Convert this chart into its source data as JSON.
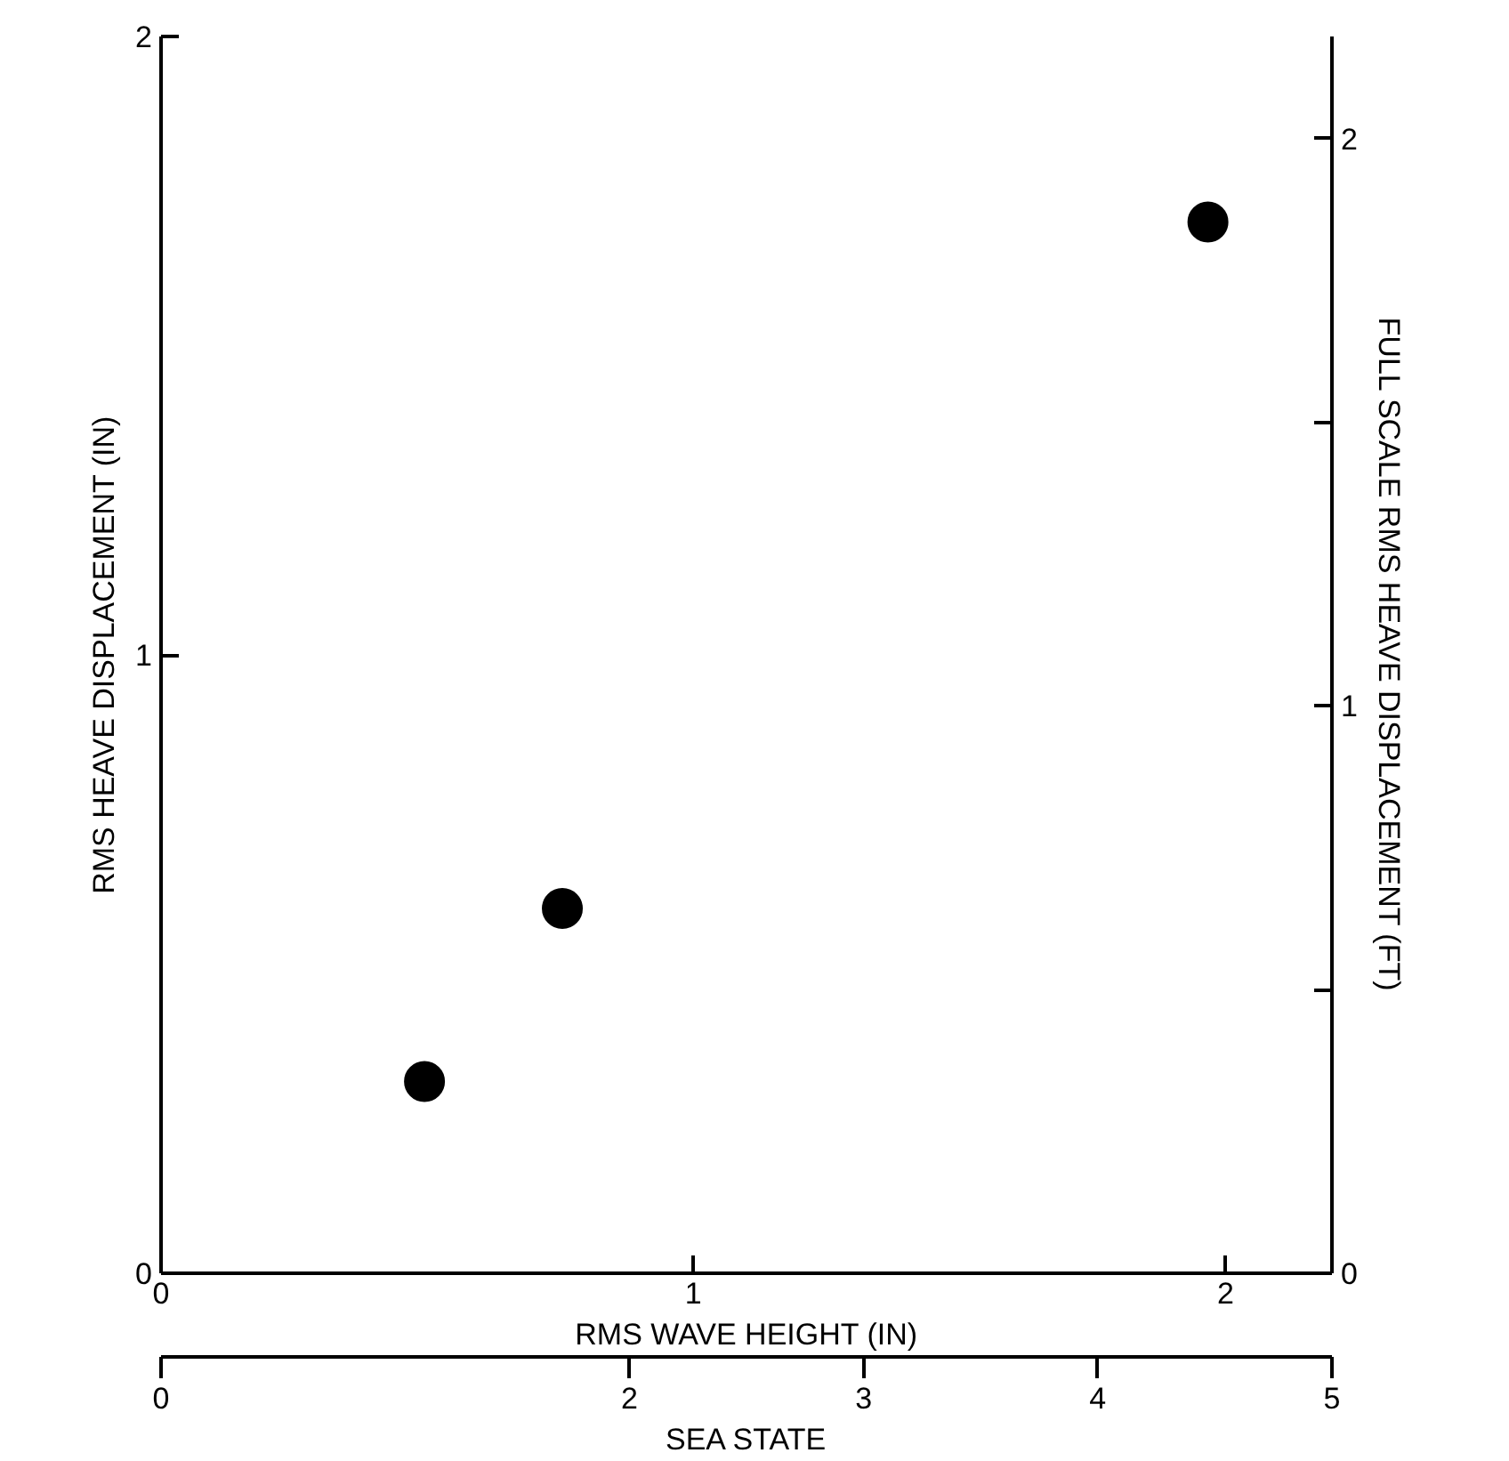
{
  "chart_data": {
    "type": "scatter",
    "xlabel": "RMS WAVE HEIGHT (IN)",
    "ylabel": "RMS HEAVE DISPLACEMENT (IN)",
    "y2label": "FULL SCALE RMS HEAVE DISPLACEMENT (FT)",
    "x2label": "SEA STATE",
    "x": [
      0.495,
      0.754,
      1.967
    ],
    "series": [
      {
        "color": "#000000",
        "values": [
          0.31,
          0.59,
          1.7
        ]
      }
    ],
    "xlim": [
      0,
      2.2
    ],
    "xticks": [
      0,
      1,
      2
    ],
    "ylim": [
      0,
      2
    ],
    "yticks": [
      0,
      1,
      2
    ],
    "y2lim": [
      0,
      2.18
    ],
    "y2ticks": [
      0,
      {
        "value": 0.5,
        "label": null
      },
      1,
      {
        "value": 1.5,
        "label": null
      },
      2
    ],
    "x2lim": [
      0,
      5
    ],
    "x2ticks": [
      0,
      2,
      3,
      4,
      5
    ],
    "marker": "circle",
    "grid": false
  }
}
